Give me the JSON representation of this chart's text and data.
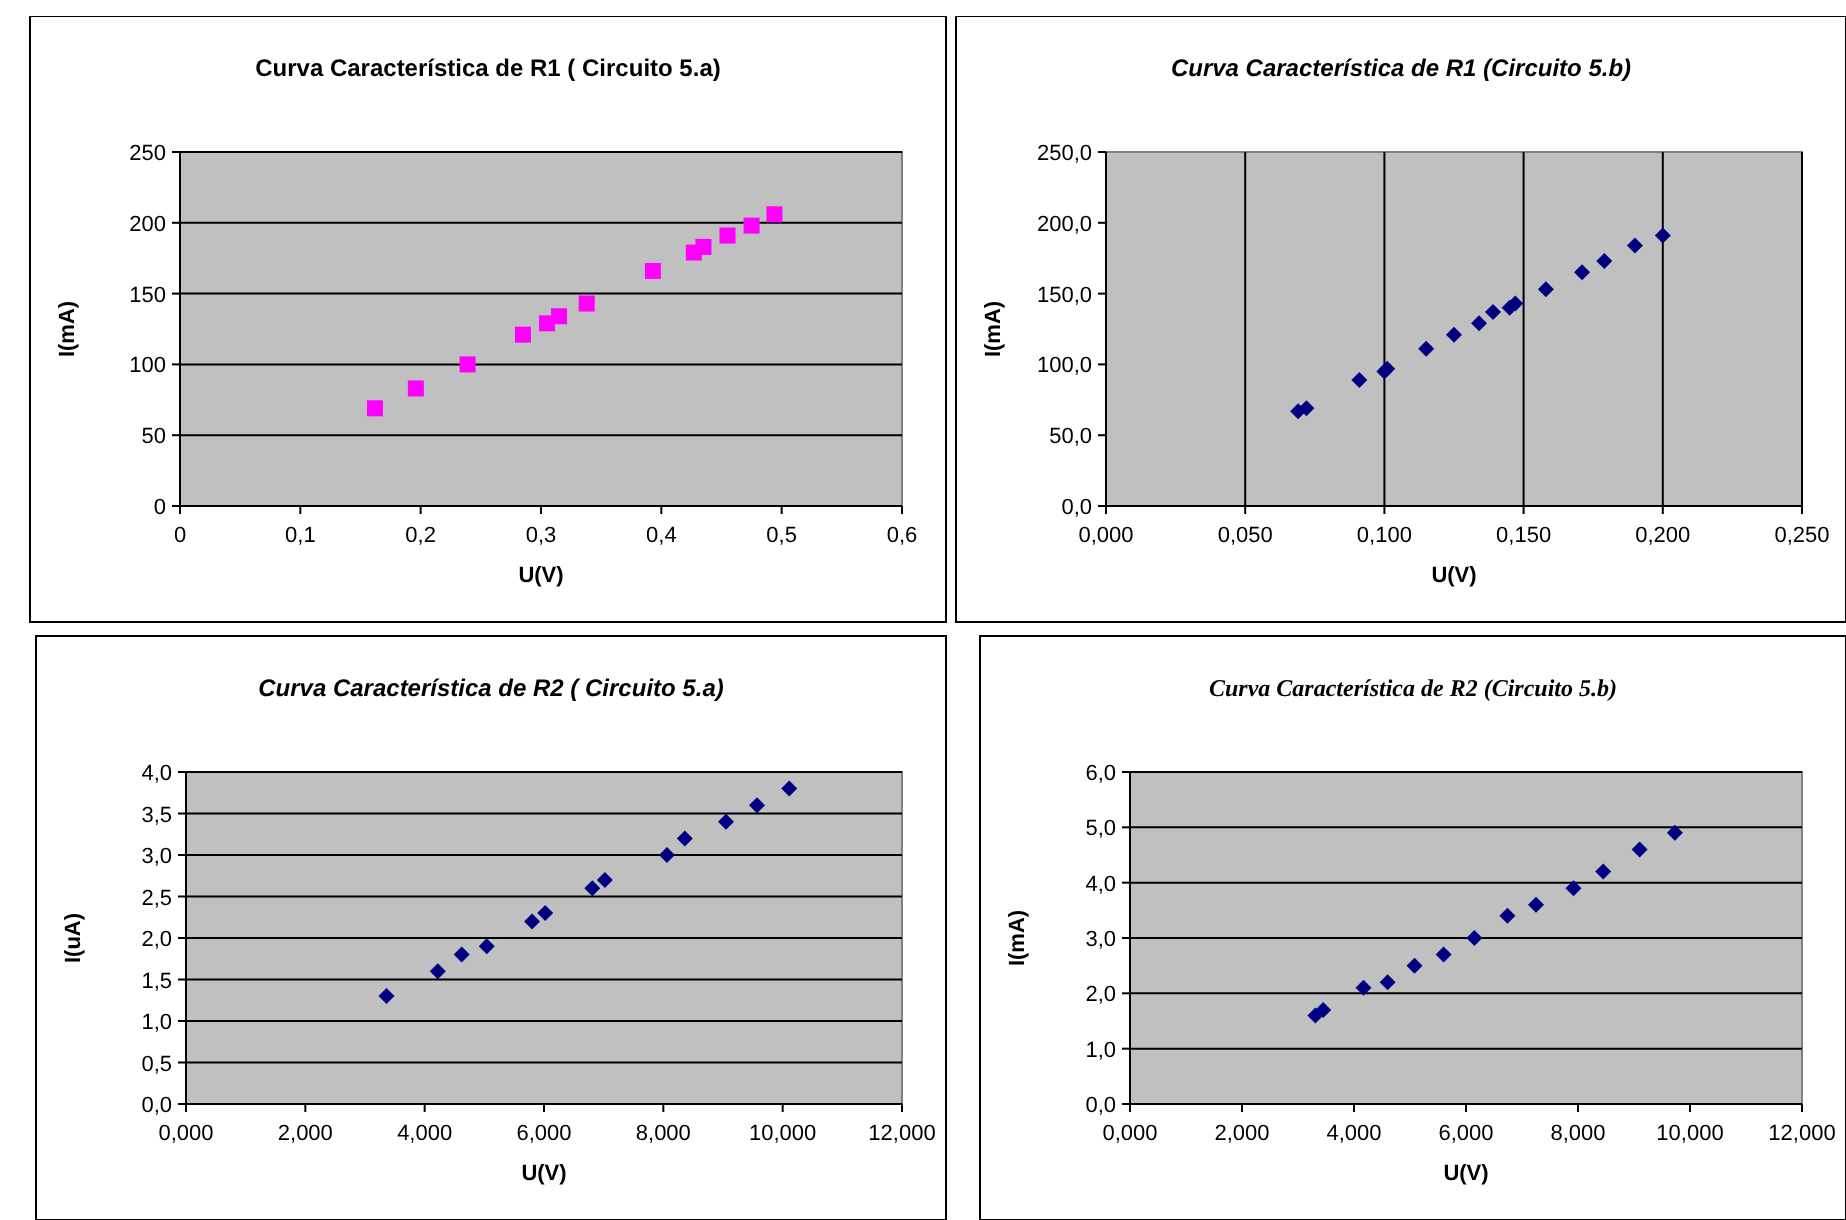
{
  "chart_data": [
    {
      "type": "scatter",
      "title": "Curva Característica de R1 ( Circuito 5.a)",
      "xlabel": "U(V)",
      "ylabel": "I(mA)",
      "xlim": [
        0,
        0.6
      ],
      "xticks": [
        0,
        {
          "value": 0.1,
          "label": "0,1"
        },
        {
          "value": 0.2,
          "label": "0,2"
        },
        {
          "value": 0.3,
          "label": "0,3"
        },
        {
          "value": 0.4,
          "label": "0,4"
        },
        {
          "value": 0.5,
          "label": "0,5"
        },
        {
          "value": 0.6,
          "label": "0,6"
        }
      ],
      "ylim": [
        0,
        250
      ],
      "yticks": [
        0,
        50,
        100,
        150,
        200,
        250
      ],
      "grid": "y",
      "marker": "square",
      "series": [
        {
          "color": "#ff00ff",
          "x": [
            0.162,
            0.196,
            0.239,
            0.285,
            0.305,
            0.315,
            0.338,
            0.393,
            0.427,
            0.435,
            0.455,
            0.475,
            0.494
          ],
          "values": [
            69,
            83,
            100,
            121,
            129,
            134,
            143,
            166,
            179,
            183,
            191,
            198,
            206
          ]
        }
      ]
    },
    {
      "type": "scatter",
      "title": "Curva Característica de R1 (Circuito 5.b)",
      "xlabel": "U(V)",
      "ylabel": "I(mA)",
      "xlim": [
        0,
        0.25
      ],
      "xticks": [
        {
          "value": 0,
          "label": "0,000"
        },
        {
          "value": 0.05,
          "label": "0,050"
        },
        {
          "value": 0.1,
          "label": "0,100"
        },
        {
          "value": 0.15,
          "label": "0,150"
        },
        {
          "value": 0.2,
          "label": "0,200"
        },
        {
          "value": 0.25,
          "label": "0,250"
        }
      ],
      "ylim": [
        0,
        250
      ],
      "yticks": [
        {
          "value": 0,
          "label": "0,0"
        },
        {
          "value": 50,
          "label": "50,0"
        },
        {
          "value": 100,
          "label": "100,0"
        },
        {
          "value": 150,
          "label": "150,0"
        },
        {
          "value": 200,
          "label": "200,0"
        },
        {
          "value": 250,
          "label": "250,0"
        }
      ],
      "grid": "x",
      "marker": "diamond",
      "series": [
        {
          "color": "#000080",
          "x": [
            0.069,
            0.072,
            0.091,
            0.1,
            0.101,
            0.115,
            0.125,
            0.134,
            0.139,
            0.145,
            0.147,
            0.158,
            0.171,
            0.179,
            0.19,
            0.2
          ],
          "values": [
            67,
            69,
            89,
            95,
            97,
            111,
            121,
            129,
            137,
            140,
            143,
            153,
            165,
            173,
            184,
            191
          ]
        }
      ]
    },
    {
      "type": "scatter",
      "title": "Curva Característica de R2 ( Circuito 5.a)",
      "xlabel": "U(V)",
      "ylabel": "I(uA)",
      "xlim": [
        0,
        12
      ],
      "xticks": [
        {
          "value": 0,
          "label": "0,000"
        },
        {
          "value": 2,
          "label": "2,000"
        },
        {
          "value": 4,
          "label": "4,000"
        },
        {
          "value": 6,
          "label": "6,000"
        },
        {
          "value": 8,
          "label": "8,000"
        },
        {
          "value": 10,
          "label": "10,000"
        },
        {
          "value": 12,
          "label": "12,000"
        }
      ],
      "ylim": [
        0,
        4
      ],
      "yticks": [
        {
          "value": 0,
          "label": "0,0"
        },
        {
          "value": 0.5,
          "label": "0,5"
        },
        {
          "value": 1,
          "label": "1,0"
        },
        {
          "value": 1.5,
          "label": "1,5"
        },
        {
          "value": 2,
          "label": "2,0"
        },
        {
          "value": 2.5,
          "label": "2,5"
        },
        {
          "value": 3,
          "label": "3,0"
        },
        {
          "value": 3.5,
          "label": "3,5"
        },
        {
          "value": 4,
          "label": "4,0"
        }
      ],
      "grid": "y",
      "marker": "diamond",
      "series": [
        {
          "color": "#000080",
          "x": [
            3.36,
            4.22,
            4.62,
            5.04,
            5.8,
            6.02,
            6.81,
            7.02,
            8.06,
            8.36,
            9.05,
            9.57,
            10.11
          ],
          "values": [
            1.3,
            1.6,
            1.8,
            1.9,
            2.2,
            2.3,
            2.6,
            2.7,
            3.0,
            3.2,
            3.4,
            3.6,
            3.8
          ]
        }
      ]
    },
    {
      "type": "scatter",
      "title": "Curva Característica  de R2 (Circuito  5.b)",
      "xlabel": "U(V)",
      "ylabel": "I(mA)",
      "xlim": [
        0,
        12
      ],
      "xticks": [
        {
          "value": 0,
          "label": "0,000"
        },
        {
          "value": 2,
          "label": "2,000"
        },
        {
          "value": 4,
          "label": "4,000"
        },
        {
          "value": 6,
          "label": "6,000"
        },
        {
          "value": 8,
          "label": "8,000"
        },
        {
          "value": 10,
          "label": "10,000"
        },
        {
          "value": 12,
          "label": "12,000"
        }
      ],
      "ylim": [
        0,
        6
      ],
      "yticks": [
        {
          "value": 0,
          "label": "0,0"
        },
        {
          "value": 1,
          "label": "1,0"
        },
        {
          "value": 2,
          "label": "2,0"
        },
        {
          "value": 3,
          "label": "3,0"
        },
        {
          "value": 4,
          "label": "4,0"
        },
        {
          "value": 5,
          "label": "5,0"
        },
        {
          "value": 6,
          "label": "6,0"
        }
      ],
      "grid": "y",
      "marker": "diamond",
      "series": [
        {
          "color": "#000080",
          "x": [
            3.31,
            3.45,
            4.17,
            4.6,
            5.08,
            5.6,
            6.15,
            6.74,
            7.25,
            7.92,
            8.45,
            9.1,
            9.73
          ],
          "values": [
            1.6,
            1.7,
            2.1,
            2.2,
            2.5,
            2.7,
            3.0,
            3.4,
            3.6,
            3.9,
            4.2,
            4.6,
            4.9
          ]
        }
      ]
    }
  ]
}
